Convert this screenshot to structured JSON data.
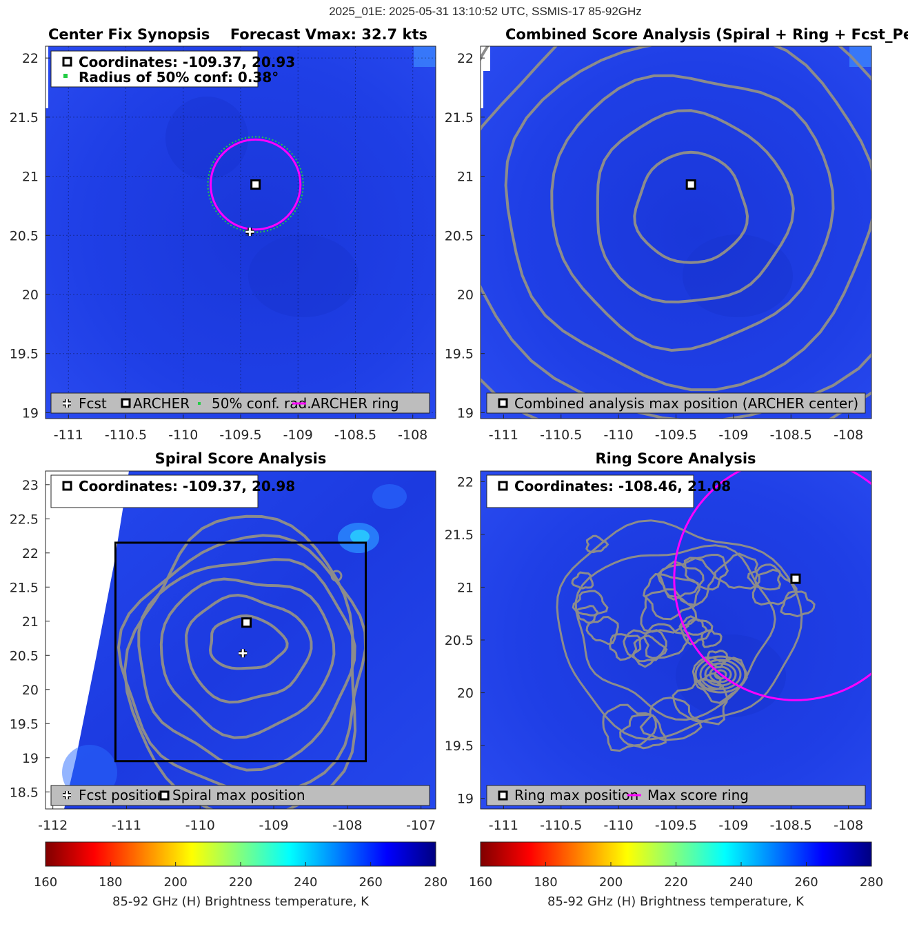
{
  "figure": {
    "suptitle": "2025_01E: 2025-05-31 13:10:52 UTC, SSMIS-17 85-92GHz"
  },
  "colors": {
    "background_field": "#1f3fe6",
    "contour": "#8c8c8c",
    "ring": "#ff00ff",
    "conf_dots": "#22cc44",
    "legend_bg": "#bdbdbd",
    "box": "#000000"
  },
  "chart_data": [
    {
      "type": "heatmap",
      "panel": "synopsis",
      "title_left": "Center Fix Synopsis",
      "title_right": "Forecast Vmax: 32.7 kts",
      "xticks": [
        "-111",
        "-110.5",
        "-110",
        "-109.5",
        "-109",
        "-108.5",
        "-108"
      ],
      "yticks": [
        "22",
        "21.5",
        "21",
        "20.5",
        "20",
        "19.5",
        "19"
      ],
      "xlim": [
        -111.2,
        -107.8
      ],
      "ylim": [
        18.95,
        22.1
      ],
      "info_lines": [
        "Coordinates: -109.37, 20.93",
        "Radius of 50% conf: 0.38°"
      ],
      "legend": [
        "Fcst",
        "ARCHER",
        "50% conf. rad.",
        "ARCHER ring"
      ],
      "archer_center": [
        -109.37,
        20.93
      ],
      "forecast_position": [
        -109.42,
        20.53
      ],
      "ring_radius_deg": 0.38
    },
    {
      "type": "heatmap",
      "panel": "combined",
      "title": "Combined Score Analysis (Spiral + Ring + Fcst_Pe",
      "xticks": [
        "-111",
        "-110.5",
        "-110",
        "-109.5",
        "-109",
        "-108.5",
        "-108"
      ],
      "yticks": [
        "22",
        "21.5",
        "21",
        "20.5",
        "20",
        "19.5",
        "19"
      ],
      "xlim": [
        -111.2,
        -107.8
      ],
      "ylim": [
        18.95,
        22.1
      ],
      "legend": [
        "Combined analysis max position (ARCHER center)"
      ],
      "max_position": [
        -109.37,
        20.93
      ],
      "contour_levels": 8
    },
    {
      "type": "heatmap",
      "panel": "spiral",
      "title": "Spiral Score Analysis",
      "xticks": [
        "-112",
        "-111",
        "-110",
        "-109",
        "-108",
        "-107"
      ],
      "yticks": [
        "23",
        "22.5",
        "22",
        "21.5",
        "21",
        "20.5",
        "20",
        "19.5",
        "19",
        "18.5"
      ],
      "xlim": [
        -112.1,
        -106.8
      ],
      "ylim": [
        18.25,
        23.2
      ],
      "info_lines": [
        "Coordinates: -109.37, 20.98"
      ],
      "legend": [
        "Fcst position",
        "Spiral max position"
      ],
      "spiral_max": [
        -109.37,
        20.98
      ],
      "forecast_position": [
        -109.42,
        20.53
      ],
      "search_box": {
        "lon": [
          -111.15,
          -107.75
        ],
        "lat": [
          18.95,
          22.15
        ]
      }
    },
    {
      "type": "heatmap",
      "panel": "ring",
      "title": "Ring Score Analysis",
      "xticks": [
        "-111",
        "-110.5",
        "-110",
        "-109.5",
        "-109",
        "-108.5",
        "-108"
      ],
      "yticks": [
        "22",
        "21.5",
        "21",
        "20.5",
        "20",
        "19.5",
        "19"
      ],
      "xlim": [
        -111.2,
        -107.8
      ],
      "ylim": [
        18.9,
        22.1
      ],
      "info_lines": [
        "Coordinates: -108.46, 21.08"
      ],
      "legend": [
        "Ring max position",
        "Max score ring"
      ],
      "ring_max": [
        -108.46,
        21.08
      ],
      "ring_radius_deg": 1.15
    }
  ],
  "colorbars": [
    {
      "ticks": [
        "160",
        "180",
        "200",
        "220",
        "240",
        "260",
        "280"
      ],
      "range": [
        160,
        280
      ],
      "label": "85-92 GHz (H) Brightness temperature, K"
    },
    {
      "ticks": [
        "160",
        "180",
        "200",
        "220",
        "240",
        "260",
        "280"
      ],
      "range": [
        160,
        280
      ],
      "label": "85-92 GHz (H) Brightness temperature, K"
    }
  ]
}
